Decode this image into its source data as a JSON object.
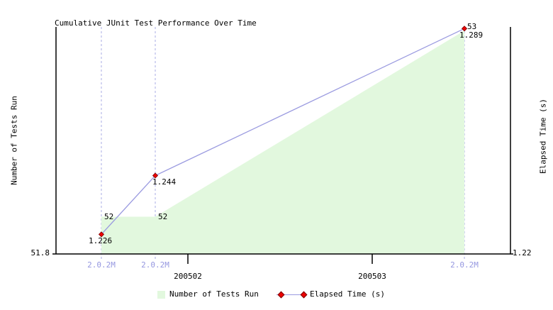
{
  "title": "Cumulative JUnit Test Performance Over Time",
  "left_axis": {
    "label": "Number of Tests Run",
    "min_label": "51.8",
    "min": 51.8,
    "max": 53.02
  },
  "right_axis": {
    "label": "Elapsed Time (s)",
    "min_label": "1.22",
    "min": 1.22,
    "max": 1.2895
  },
  "legend": {
    "area_label": "Number of Tests Run",
    "line_label": "Elapsed Time (s)"
  },
  "colors": {
    "area_fill": "#e2f8de",
    "line": "#9b9be0",
    "marker_fill": "#ee0000",
    "marker_edge": "#7a0000",
    "gridline": "#a9ace4",
    "version_label": "#9597e0",
    "axis": "#000000"
  },
  "chart_data": {
    "type": "area",
    "title": "Cumulative JUnit Test Performance Over Time",
    "xlabel": "",
    "ylabel_left": "Number of Tests Run",
    "ylabel_right": "Elapsed Time (s)",
    "left_ylim": [
      51.8,
      53.02
    ],
    "right_ylim": [
      1.22,
      1.2895
    ],
    "grid": "dashed-vertical-at-points",
    "legend_position": "bottom",
    "x_ticks": [
      {
        "label": "200502",
        "frac": 0.2902
      },
      {
        "label": "200503",
        "frac": 0.6958
      }
    ],
    "points": [
      {
        "version": "2.0.2M",
        "x_frac": 0.0998,
        "tests": 52,
        "elapsed": 1.226
      },
      {
        "version": "2.0.2M",
        "x_frac": 0.2184,
        "tests": 52,
        "elapsed": 1.244
      },
      {
        "version": "2.0.2M",
        "x_frac": 0.8986,
        "tests": 53,
        "elapsed": 1.289
      }
    ],
    "series": [
      {
        "name": "Number of Tests Run",
        "type": "area",
        "axis": "left",
        "values": [
          52,
          52,
          53
        ]
      },
      {
        "name": "Elapsed Time (s)",
        "type": "line",
        "axis": "right",
        "values": [
          1.226,
          1.244,
          1.289
        ]
      }
    ]
  }
}
